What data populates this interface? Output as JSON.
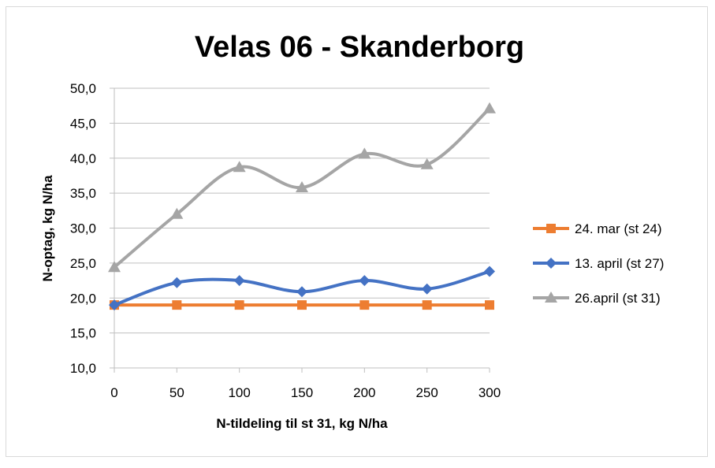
{
  "chart_data": {
    "type": "line",
    "title": "Velas 06 - Skanderborg",
    "xlabel": "N-tildeling til st 31, kg N/ha",
    "ylabel": "N-optag, kg N/ha",
    "x": [
      0,
      50,
      100,
      150,
      200,
      250,
      300
    ],
    "x_tick_labels": [
      "0",
      "50",
      "100",
      "150",
      "200",
      "250",
      "300"
    ],
    "ylim": [
      10,
      50
    ],
    "y_tick_labels": [
      "10,0",
      "15,0",
      "20,0",
      "25,0",
      "30,0",
      "35,0",
      "40,0",
      "45,0",
      "50,0"
    ],
    "grid": "horizontal",
    "legend_position": "right",
    "series": [
      {
        "name": "24. mar (st 24)",
        "color": "#ED7D31",
        "marker": "square",
        "smooth": false,
        "values": [
          19.0,
          19.0,
          19.0,
          19.0,
          19.0,
          19.0,
          19.0
        ]
      },
      {
        "name": "13. april (st 27)",
        "color": "#4472C4",
        "marker": "diamond",
        "smooth": true,
        "values": [
          19.0,
          22.2,
          22.5,
          20.9,
          22.5,
          21.3,
          23.8
        ]
      },
      {
        "name": "26.april (st 31)",
        "color": "#A5A5A5",
        "marker": "triangle",
        "smooth": true,
        "values": [
          24.4,
          32.0,
          38.7,
          35.8,
          40.6,
          39.1,
          47.1
        ]
      }
    ]
  }
}
